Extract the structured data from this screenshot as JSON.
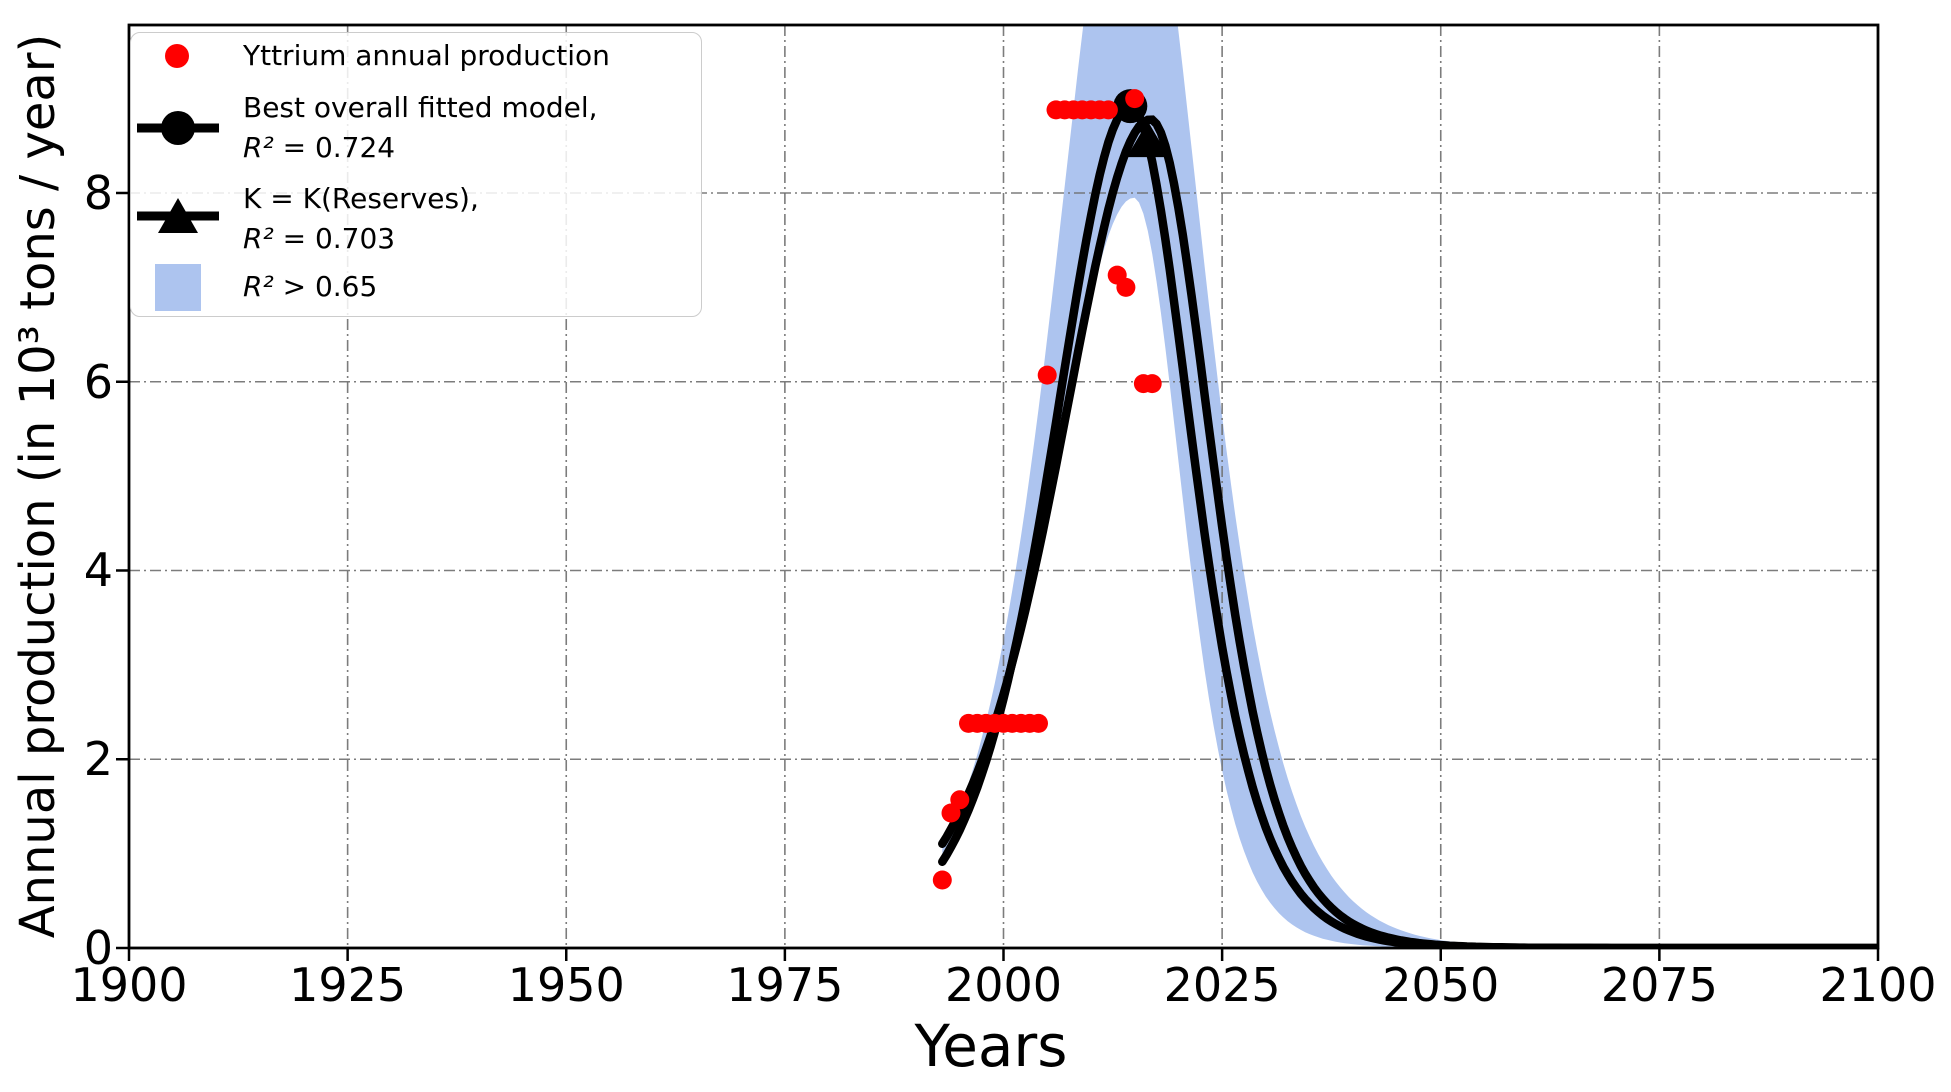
{
  "figure": {
    "background": "#ffffff"
  },
  "chart_data": {
    "type": "scatter+line",
    "title": "",
    "xlabel": "Years",
    "ylabel": "Annual production (in 10³ tons / year)",
    "xlim": [
      1900,
      2100
    ],
    "ylim": [
      0,
      9.78
    ],
    "xticks": [
      1900,
      1925,
      1950,
      1975,
      2000,
      2025,
      2050,
      2075,
      2100
    ],
    "yticks": [
      0,
      2,
      4,
      6,
      8
    ],
    "grid": {
      "shown": true,
      "style": "dash-dot",
      "color": "#6e6e6e"
    },
    "legend_position": "upper-left",
    "scatter": {
      "name": "Yttrium annual production",
      "color": "#ff0000",
      "points": [
        [
          1993,
          0.72
        ],
        [
          1994,
          1.43
        ],
        [
          1995,
          1.57
        ],
        [
          1996,
          2.38
        ],
        [
          1997,
          2.38
        ],
        [
          1998,
          2.38
        ],
        [
          1999,
          2.38
        ],
        [
          2000,
          2.38
        ],
        [
          2001,
          2.38
        ],
        [
          2002,
          2.38
        ],
        [
          2003,
          2.38
        ],
        [
          2004,
          2.38
        ],
        [
          2005,
          6.07
        ],
        [
          2006,
          8.88
        ],
        [
          2007,
          8.88
        ],
        [
          2008,
          8.88
        ],
        [
          2009,
          8.88
        ],
        [
          2010,
          8.88
        ],
        [
          2011,
          8.88
        ],
        [
          2012,
          8.88
        ],
        [
          2013,
          7.13
        ],
        [
          2014,
          7.0
        ],
        [
          2015,
          9.0
        ],
        [
          2016,
          5.98
        ],
        [
          2017,
          5.98
        ]
      ]
    },
    "models": [
      {
        "name": "Best overall fitted model",
        "r_squared": 0.724,
        "marker": "circle",
        "color": "#000000",
        "hubbert": {
          "start_year": 1993,
          "end_year": 2100,
          "peak_year": 2014.5,
          "peak_value": 8.92,
          "k_rise": 0.168,
          "k_fall": 0.21
        },
        "marker_at": [
          2014.5,
          8.92
        ]
      },
      {
        "name": "K = K(Reserves)",
        "r_squared": 0.703,
        "marker": "triangle",
        "color": "#000000",
        "hubbert": {
          "start_year": 1993,
          "end_year": 2100,
          "peak_year": 2016.8,
          "peak_value": 8.78,
          "k_rise": 0.1426,
          "k_fall": 0.212
        },
        "marker_at": [
          2016.5,
          8.55
        ]
      }
    ],
    "band": {
      "name": "R² > 0.65",
      "color": "#adc4ef",
      "start_year": 1993,
      "end_year": 2070,
      "outer": {
        "peak_year": 2014.6,
        "peak_value": 12.2,
        "k_rise": 0.175,
        "k_fall": 0.18
      },
      "inner": {
        "peak_year": 2014.9,
        "peak_value": 7.95,
        "k_rise": 0.158,
        "k_fall": 0.267
      }
    }
  },
  "legend": {
    "items": [
      {
        "label": "Yttrium annual production"
      },
      {
        "line1": "Best overall fitted model,",
        "math": " R²",
        "rest": " = 0.724"
      },
      {
        "line1": "K = K(Reserves),",
        "math": " R²",
        "rest": " = 0.703"
      },
      {
        "math": "R²",
        "rest": " > 0.65"
      }
    ]
  }
}
